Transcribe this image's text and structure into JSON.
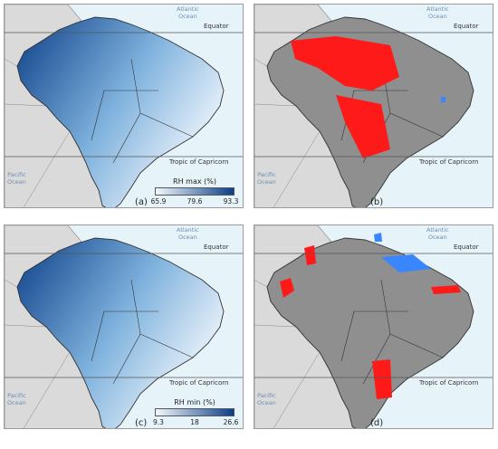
{
  "panels": [
    {
      "id": "a",
      "label": "(a)",
      "legend": {
        "title": "RH max (%)",
        "ticks": [
          "65.9",
          "79.6",
          "93.3"
        ]
      }
    },
    {
      "id": "b",
      "label": "(b)"
    },
    {
      "id": "c",
      "label": "(c)",
      "legend": {
        "title": "RH min (%)",
        "ticks": [
          "9.3",
          "18",
          "26.6"
        ]
      }
    },
    {
      "id": "d",
      "label": "(d)"
    }
  ],
  "map_labels": {
    "atlantic": "Atlantic\nOcean",
    "pacific": "Pacific\nOcean",
    "equator": "Equator",
    "tropic": "Tropic of Capricorn"
  },
  "colors": {
    "ocean": "#e6f4fa",
    "land": "#dadada",
    "grey_fill": "#8f8f8f",
    "red": "#ff1a1a",
    "blue": "#3a86ff",
    "ramp_light": "#f3f8fd",
    "ramp_dark": "#0b3e87"
  }
}
